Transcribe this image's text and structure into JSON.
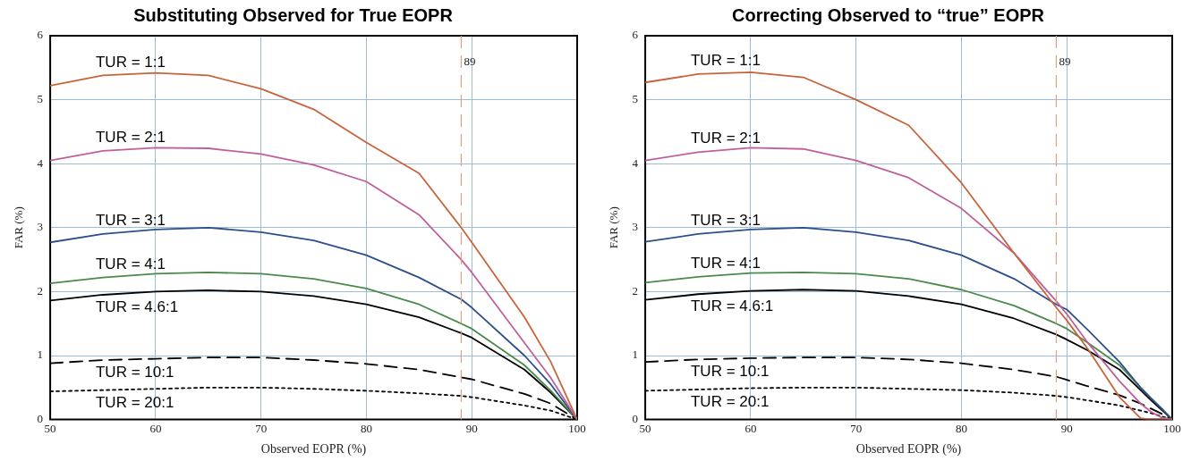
{
  "chart_data": [
    {
      "type": "line",
      "title": "Substituting Observed for True EOPR",
      "xlabel": "Observed EOPR (%)",
      "ylabel": "FAR (%)",
      "xlim": [
        50,
        100
      ],
      "xticks": [
        50,
        60,
        70,
        80,
        90,
        100
      ],
      "ylim": [
        0,
        6
      ],
      "yticks": [
        0,
        1,
        2,
        3,
        4,
        5,
        6
      ],
      "grid": true,
      "legend": false,
      "marker": "none",
      "x": [
        50,
        55,
        60,
        65,
        70,
        75,
        80,
        85,
        89,
        90,
        95,
        97.5,
        100
      ],
      "series": [
        {
          "name": "TUR = 1:1",
          "color": "#c8643c",
          "line_style": "solid",
          "values": [
            5.22,
            5.38,
            5.42,
            5.38,
            5.17,
            4.85,
            4.33,
            3.85,
            3.0,
            2.77,
            1.6,
            0.9,
            0
          ]
        },
        {
          "name": "TUR = 2:1",
          "color": "#c0609a",
          "line_style": "solid",
          "values": [
            4.05,
            4.2,
            4.25,
            4.24,
            4.15,
            3.98,
            3.72,
            3.2,
            2.5,
            2.3,
            1.2,
            0.65,
            0
          ]
        },
        {
          "name": "TUR = 3:1",
          "color": "#2c4f8c",
          "line_style": "solid",
          "values": [
            2.77,
            2.9,
            2.97,
            3.0,
            2.93,
            2.8,
            2.57,
            2.22,
            1.88,
            1.75,
            1.0,
            0.55,
            0
          ]
        },
        {
          "name": "TUR = 4:1",
          "color": "#4a8a4a",
          "line_style": "solid",
          "values": [
            2.13,
            2.22,
            2.28,
            2.3,
            2.28,
            2.2,
            2.05,
            1.8,
            1.5,
            1.42,
            0.85,
            0.45,
            0
          ]
        },
        {
          "name": "TUR = 4.6:1",
          "color": "#000000",
          "line_style": "solid",
          "values": [
            1.86,
            1.95,
            2.0,
            2.02,
            2.0,
            1.93,
            1.8,
            1.6,
            1.35,
            1.28,
            0.78,
            0.42,
            0
          ]
        },
        {
          "name": "TUR = 10:1",
          "color": "#000000",
          "line_style": "dashed",
          "values": [
            0.88,
            0.93,
            0.95,
            0.97,
            0.97,
            0.93,
            0.87,
            0.78,
            0.66,
            0.63,
            0.4,
            0.25,
            0
          ]
        },
        {
          "name": "TUR = 20:1",
          "color": "#000000",
          "line_style": "dotted",
          "values": [
            0.44,
            0.46,
            0.48,
            0.5,
            0.5,
            0.48,
            0.45,
            0.41,
            0.37,
            0.35,
            0.22,
            0.14,
            0
          ]
        }
      ],
      "ref_lines": [
        {
          "axis": "x",
          "value": 89,
          "label": "89",
          "color": "#e0a080",
          "line_style": "dashed"
        }
      ]
    },
    {
      "type": "line",
      "title": "Correcting Observed to “true” EOPR",
      "xlabel": "Observed EOPR (%)",
      "ylabel": "FAR (%)",
      "xlim": [
        50,
        100
      ],
      "xticks": [
        50,
        60,
        70,
        80,
        90,
        100
      ],
      "ylim": [
        0,
        6
      ],
      "yticks": [
        0,
        1,
        2,
        3,
        4,
        5,
        6
      ],
      "grid": true,
      "legend": false,
      "marker": "none",
      "x": [
        50,
        55,
        60,
        65,
        70,
        75,
        80,
        85,
        89,
        90,
        92,
        95,
        97,
        98,
        99,
        100
      ],
      "series": [
        {
          "name": "TUR = 1:1",
          "color": "#c8643c",
          "line_style": "solid",
          "values": [
            5.27,
            5.4,
            5.43,
            5.35,
            5.0,
            4.6,
            3.7,
            2.6,
            1.75,
            1.55,
            1.1,
            0.35,
            0.02,
            0,
            0,
            0
          ]
        },
        {
          "name": "TUR = 2:1",
          "color": "#c0609a",
          "line_style": "solid",
          "values": [
            4.05,
            4.18,
            4.25,
            4.23,
            4.05,
            3.78,
            3.3,
            2.6,
            1.85,
            1.65,
            1.2,
            0.6,
            0.25,
            0.12,
            0.03,
            0
          ]
        },
        {
          "name": "TUR = 3:1",
          "color": "#2c4f8c",
          "line_style": "solid",
          "values": [
            2.78,
            2.9,
            2.97,
            3.0,
            2.93,
            2.8,
            2.57,
            2.2,
            1.8,
            1.72,
            1.4,
            0.9,
            0.5,
            0.33,
            0.17,
            0
          ]
        },
        {
          "name": "TUR = 4:1",
          "color": "#4a8a4a",
          "line_style": "solid",
          "values": [
            2.14,
            2.23,
            2.29,
            2.3,
            2.28,
            2.2,
            2.03,
            1.78,
            1.5,
            1.42,
            1.2,
            0.85,
            0.5,
            0.33,
            0.17,
            0
          ]
        },
        {
          "name": "TUR = 4.6:1",
          "color": "#000000",
          "line_style": "solid",
          "values": [
            1.87,
            1.96,
            2.01,
            2.03,
            2.01,
            1.93,
            1.8,
            1.58,
            1.33,
            1.25,
            1.08,
            0.78,
            0.46,
            0.3,
            0.15,
            0
          ]
        },
        {
          "name": "TUR = 10:1",
          "color": "#000000",
          "line_style": "dashed",
          "values": [
            0.9,
            0.94,
            0.96,
            0.97,
            0.97,
            0.94,
            0.88,
            0.78,
            0.67,
            0.62,
            0.52,
            0.38,
            0.25,
            0.17,
            0.09,
            0
          ]
        },
        {
          "name": "TUR = 20:1",
          "color": "#000000",
          "line_style": "dotted",
          "values": [
            0.45,
            0.47,
            0.49,
            0.5,
            0.5,
            0.48,
            0.46,
            0.42,
            0.37,
            0.35,
            0.3,
            0.22,
            0.14,
            0.1,
            0.05,
            0
          ]
        }
      ],
      "ref_lines": [
        {
          "axis": "x",
          "value": 89,
          "label": "89",
          "color": "#e0a080",
          "line_style": "dashed"
        }
      ]
    }
  ]
}
